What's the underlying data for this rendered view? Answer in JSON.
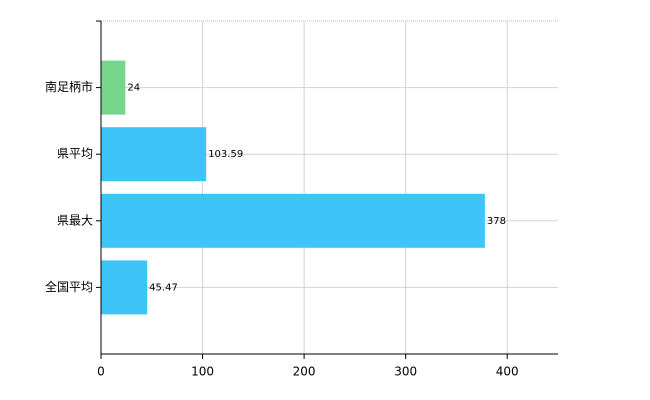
{
  "chart_data": {
    "type": "bar",
    "orientation": "horizontal",
    "categories": [
      "南足柄市",
      "県平均",
      "県最大",
      "全国平均"
    ],
    "values": [
      24,
      103.59,
      378,
      45.47
    ],
    "colors": [
      "#78d68c",
      "#3ec4f6",
      "#3ec4f6",
      "#3ec4f6"
    ],
    "xlim": [
      0,
      450
    ],
    "xticks": [
      0,
      100,
      200,
      300,
      400
    ],
    "grid": true
  }
}
